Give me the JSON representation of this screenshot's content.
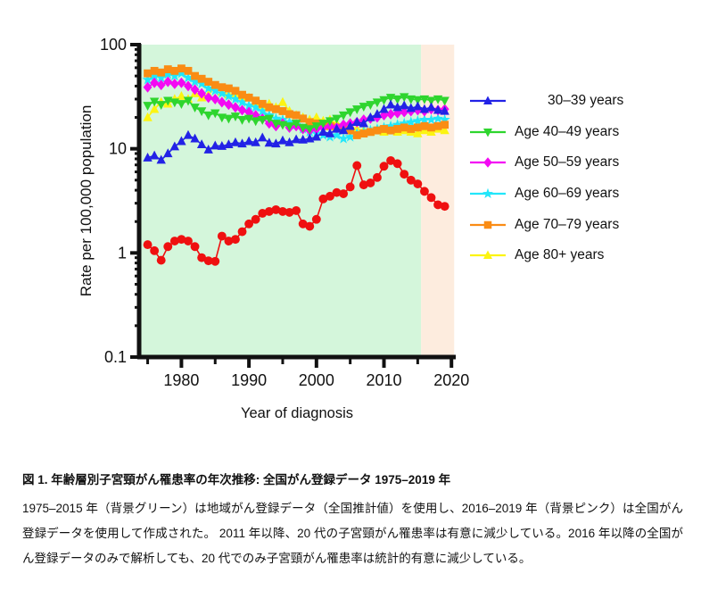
{
  "chart_data": {
    "type": "line",
    "title": "",
    "xlabel": "Year of diagnosis",
    "ylabel": "Rate per 100,000 population",
    "y_scale": "log",
    "ylim": [
      0.1,
      100
    ],
    "xlim": [
      1974,
      2020.5
    ],
    "y_major_ticks": [
      100,
      10,
      1,
      0.1
    ],
    "y_major_tick_labels": [
      "100",
      "10",
      "1",
      "0.1"
    ],
    "x_major_ticks": [
      1980,
      1990,
      2000,
      2010,
      2020
    ],
    "x_major_tick_labels": [
      "1980",
      "1990",
      "2000",
      "2010",
      "2020"
    ],
    "x_minor_ticks": [
      1975,
      1985,
      1995,
      2005,
      2015
    ],
    "grid": false,
    "legend_position": "right",
    "background_bands": [
      {
        "name": "regional-registry-period-green",
        "from": 1974,
        "to": 2015.5,
        "color": "#D4F6DB"
      },
      {
        "name": "national-registry-period-pink",
        "from": 2015.5,
        "to": 2020.4,
        "color": "#FDECDE"
      }
    ],
    "x": [
      1975,
      1976,
      1977,
      1978,
      1979,
      1980,
      1981,
      1982,
      1983,
      1984,
      1985,
      1986,
      1987,
      1988,
      1989,
      1990,
      1991,
      1992,
      1993,
      1994,
      1995,
      1996,
      1997,
      1998,
      1999,
      2000,
      2001,
      2002,
      2003,
      2004,
      2005,
      2006,
      2007,
      2008,
      2009,
      2010,
      2011,
      2012,
      2013,
      2014,
      2015,
      2016,
      2017,
      2018,
      2019
    ],
    "draw_order": [
      "age_80_plus",
      "age_60_69",
      "age_70_79",
      "age_50_59",
      "age_40_49",
      "age_30_39",
      "age_20_29"
    ],
    "series": [
      {
        "key": "age_30_39",
        "legend_label": "30–39 years",
        "color": "#2222E6",
        "marker": "triangle-up",
        "values": [
          8.2,
          8.6,
          7.8,
          9.0,
          10.5,
          11.8,
          13.5,
          12.5,
          11.0,
          9.8,
          10.7,
          10.6,
          11.0,
          11.5,
          11.2,
          11.8,
          11.5,
          12.8,
          11.4,
          11.2,
          12.0,
          11.5,
          12.3,
          12.2,
          12.5,
          13.0,
          14.5,
          14.0,
          15.5,
          15.0,
          16.5,
          18.0,
          17.5,
          20.0,
          21.5,
          24.0,
          26.5,
          25.0,
          26.0,
          24.5,
          25.5,
          24.0,
          25.0,
          23.5,
          23.0
        ]
      },
      {
        "key": "age_40_49",
        "legend_label": "Age 40–49 years",
        "color": "#2ED52E",
        "marker": "triangle-down",
        "values": [
          26,
          28.5,
          26.5,
          29,
          28,
          27,
          29,
          25,
          23,
          21,
          22,
          20,
          19.5,
          20.5,
          19,
          19.5,
          18.5,
          19,
          19.5,
          17.5,
          17,
          16.5,
          17.5,
          16,
          15.5,
          16.5,
          17.5,
          18.5,
          19.5,
          21,
          22.5,
          24,
          25.5,
          26.5,
          28,
          29.5,
          31,
          30,
          31.5,
          30,
          29.5,
          30,
          29,
          30,
          29
        ]
      },
      {
        "key": "age_50_59",
        "legend_label": "Age 50–59 years",
        "color": "#F309F3",
        "marker": "diamond",
        "values": [
          39,
          43,
          41,
          44,
          42,
          43,
          40,
          37,
          34,
          31,
          30,
          28,
          26.5,
          25,
          23.5,
          22.5,
          21,
          19.5,
          17.5,
          16.5,
          17.5,
          16,
          16.5,
          15.5,
          15,
          15.5,
          16,
          16.5,
          16,
          17,
          17.5,
          18,
          19,
          19.5,
          20,
          21,
          21.5,
          22,
          22.5,
          23,
          23.5,
          23,
          24,
          23.5,
          24
        ]
      },
      {
        "key": "age_60_69",
        "legend_label": "Age 60–69 years",
        "color": "#22E6FA",
        "marker": "star",
        "values": [
          46,
          50,
          48,
          52,
          50,
          53,
          48,
          44,
          42,
          38,
          36,
          34,
          32,
          30,
          28,
          26,
          25,
          23,
          21,
          19.5,
          19,
          18,
          17,
          15.5,
          14.5,
          14,
          13.5,
          13,
          13.5,
          12.5,
          13,
          14,
          14.5,
          15,
          15.5,
          16,
          16.5,
          17,
          17.5,
          18,
          18.5,
          19,
          19,
          19.5,
          19
        ]
      },
      {
        "key": "age_70_79",
        "legend_label": "Age 70–79 years",
        "color": "#FA8C14",
        "marker": "square",
        "values": [
          53,
          56,
          54,
          58,
          56,
          59,
          56,
          50,
          47,
          44,
          41,
          39,
          38,
          36,
          33,
          31,
          29,
          27,
          25,
          24,
          23,
          21.5,
          21,
          19.5,
          18,
          17.5,
          17,
          16.5,
          16,
          15.5,
          15,
          13.5,
          14,
          14.5,
          15,
          15.5,
          15,
          15.5,
          16,
          15.5,
          16,
          16.5,
          16,
          16.5,
          17
        ]
      },
      {
        "key": "age_80_plus",
        "legend_label": "Age 80+ years",
        "color": "#FCF412",
        "marker": "triangle-up",
        "values": [
          20,
          24,
          28,
          27,
          30,
          32,
          30,
          34,
          31,
          33,
          39,
          35,
          33,
          34,
          31,
          31,
          28,
          26,
          27,
          25,
          28,
          23,
          21,
          20,
          19,
          20,
          18.5,
          19,
          17.5,
          17,
          16,
          15.5,
          15,
          14.5,
          15,
          14.5,
          15,
          14.5,
          15,
          14.5,
          14,
          15,
          14.5,
          15.5,
          15
        ]
      },
      {
        "key": "age_20_29",
        "legend_label": null,
        "color": "#EF1010",
        "marker": "circle",
        "values": [
          1.2,
          1.05,
          0.85,
          1.15,
          1.3,
          1.35,
          1.3,
          1.15,
          0.9,
          0.84,
          0.83,
          1.45,
          1.3,
          1.35,
          1.6,
          1.9,
          2.1,
          2.4,
          2.5,
          2.6,
          2.5,
          2.45,
          2.55,
          1.9,
          1.8,
          2.1,
          3.3,
          3.5,
          3.8,
          3.7,
          4.3,
          6.9,
          4.5,
          4.7,
          5.3,
          6.8,
          7.7,
          7.2,
          5.7,
          5.0,
          4.6,
          3.9,
          3.4,
          2.9,
          2.8
        ]
      }
    ]
  },
  "legend": {
    "items": [
      {
        "series": "age_30_39",
        "label": "30–39 years",
        "indent": true
      },
      {
        "series": "age_40_49",
        "label": "Age 40–49 years",
        "indent": false
      },
      {
        "series": "age_50_59",
        "label": "Age 50–59 years",
        "indent": false
      },
      {
        "series": "age_60_69",
        "label": "Age 60–69 years",
        "indent": false
      },
      {
        "series": "age_70_79",
        "label": "Age 70–79 years",
        "indent": false
      },
      {
        "series": "age_80_plus",
        "label": "Age 80+ years",
        "indent": false
      }
    ]
  },
  "caption": {
    "title": "図 1. 年齢層別子宮頸がん罹患率の年次推移: 全国がん登録データ 1975–2019 年",
    "body": "1975–2015 年（背景グリーン）は地域がん登録データ（全国推計値）を使用し、2016–2019 年（背景ピンク）は全国がん登録データを使用して作成された。 2011 年以降、20 代の子宮頸がん罹患率は有意に減少している。2016 年以降の全国がん登録データのみで解析しても、20 代でのみ子宮頸がん罹患率は統計的有意に減少している。"
  }
}
